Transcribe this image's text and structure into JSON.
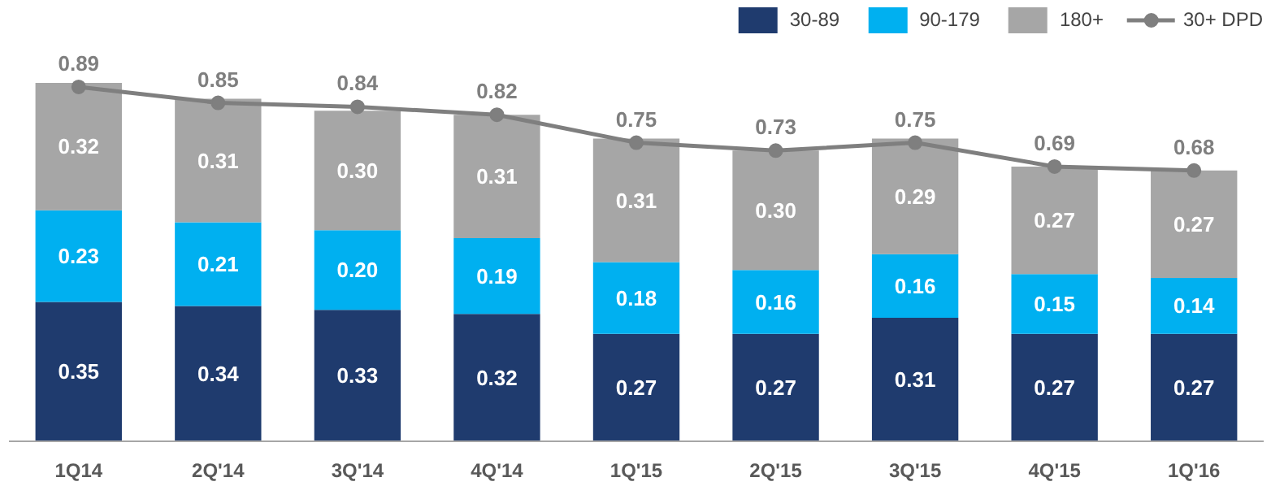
{
  "chart_data": {
    "type": "bar",
    "stacked": true,
    "legend": "top right",
    "grid": false,
    "categories": [
      "1Q14",
      "2Q'14",
      "3Q'14",
      "4Q'14",
      "1Q'15",
      "2Q'15",
      "3Q'15",
      "4Q'15",
      "1Q'16"
    ],
    "series": [
      {
        "name": "30-89",
        "color": "#1f3b6e",
        "values": [
          0.35,
          0.34,
          0.33,
          0.32,
          0.27,
          0.27,
          0.31,
          0.27,
          0.27
        ],
        "value_labels": [
          "0.35",
          "0.34",
          "0.33",
          "0.32",
          "0.27",
          "0.27",
          "0.31",
          "0.27",
          "0.27"
        ]
      },
      {
        "name": "90-179",
        "color": "#00b0f0",
        "values": [
          0.23,
          0.21,
          0.2,
          0.19,
          0.18,
          0.16,
          0.16,
          0.15,
          0.14
        ],
        "value_labels": [
          "0.23",
          "0.21",
          "0.20",
          "0.19",
          "0.18",
          "0.16",
          "0.16",
          "0.15",
          "0.14"
        ]
      },
      {
        "name": "180+",
        "color": "#a6a6a6",
        "values": [
          0.32,
          0.31,
          0.3,
          0.31,
          0.31,
          0.3,
          0.29,
          0.27,
          0.27
        ],
        "value_labels": [
          "0.32",
          "0.31",
          "0.30",
          "0.31",
          "0.31",
          "0.30",
          "0.29",
          "0.27",
          "0.27"
        ]
      },
      {
        "name": "30+ DPD",
        "type": "line",
        "marker": "circle",
        "color": "#7f7f7f",
        "values": [
          0.89,
          0.85,
          0.84,
          0.82,
          0.75,
          0.73,
          0.75,
          0.69,
          0.68
        ],
        "value_labels": [
          "0.89",
          "0.85",
          "0.84",
          "0.82",
          "0.75",
          "0.73",
          "0.75",
          "0.69",
          "0.68"
        ]
      }
    ]
  }
}
